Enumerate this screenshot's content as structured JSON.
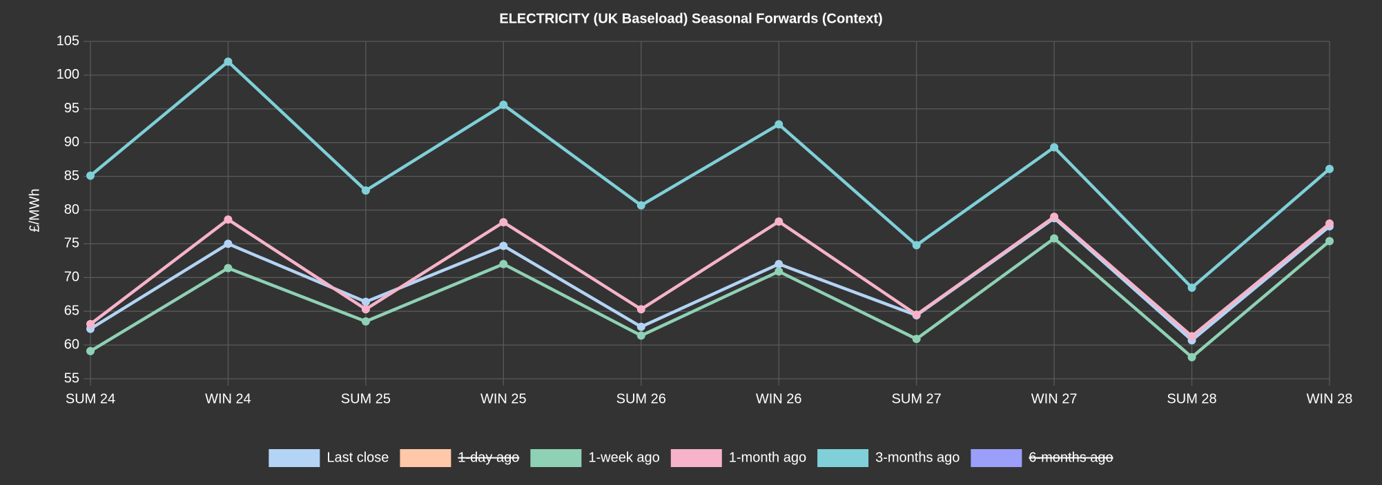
{
  "chart_data": {
    "type": "line",
    "title": "ELECTRICITY (UK Baseload) Seasonal Forwards (Context)",
    "y_label": "£/MWh",
    "categories": [
      "SUM 24",
      "WIN 24",
      "SUM 25",
      "WIN 25",
      "SUM 26",
      "WIN 26",
      "SUM 27",
      "WIN 27",
      "SUM 28",
      "WIN 28"
    ],
    "ylim": [
      55,
      105
    ],
    "yticks": [
      55,
      60,
      65,
      70,
      75,
      80,
      85,
      90,
      95,
      100,
      105
    ],
    "grid": true,
    "legend": "bottom",
    "series": [
      {
        "name": "Last close",
        "color": "#b3d4f5",
        "values": [
          62.4,
          75.0,
          66.4,
          74.7,
          62.7,
          72.0,
          64.4,
          78.8,
          60.7,
          77.6
        ]
      },
      {
        "name": "1-day ago",
        "color": "#ffc8a8",
        "hidden": true,
        "values": [
          null,
          null,
          null,
          null,
          null,
          null,
          null,
          null,
          null,
          null
        ]
      },
      {
        "name": "1-week ago",
        "color": "#8fd1b5",
        "values": [
          59.1,
          71.4,
          63.5,
          72.0,
          61.4,
          70.9,
          60.9,
          75.8,
          58.2,
          75.4
        ]
      },
      {
        "name": "1-month ago",
        "color": "#f7b3c9",
        "values": [
          63.1,
          78.6,
          65.3,
          78.2,
          65.3,
          78.3,
          64.5,
          79.0,
          61.3,
          78.0
        ]
      },
      {
        "name": "3-months ago",
        "color": "#7fd0d8",
        "values": [
          85.1,
          102.0,
          82.9,
          95.6,
          80.7,
          92.7,
          74.8,
          89.3,
          68.5,
          86.1
        ]
      },
      {
        "name": "6-months ago",
        "color": "#9b9ffa",
        "hidden": true,
        "values": [
          null,
          null,
          null,
          null,
          null,
          null,
          null,
          null,
          null,
          null
        ]
      }
    ]
  }
}
